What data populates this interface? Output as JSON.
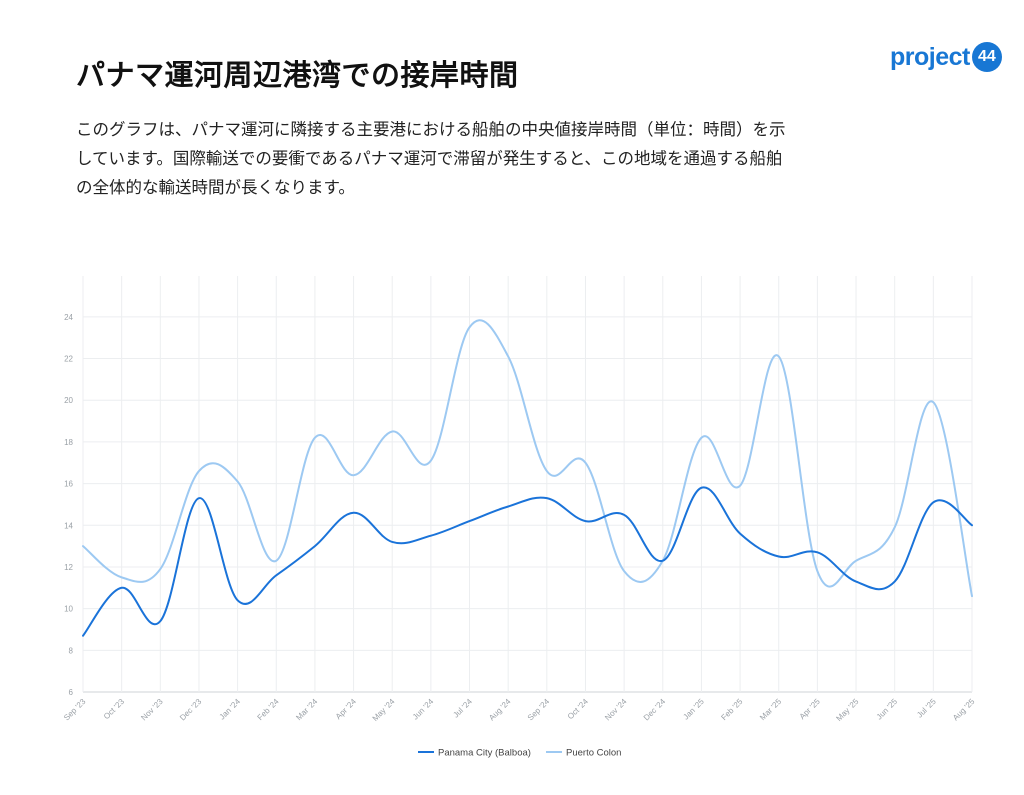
{
  "header": {
    "title": "パナマ運河周辺港湾での接岸時間",
    "description": "このグラフは、パナマ運河に隣接する主要港における船舶の中央値接岸時間（単位：時間）を示しています。国際輸送での要衝であるパナマ運河で滞留が発生すると、この地域を通過する船舶の全体的な輸送時間が長くなります。"
  },
  "logo": {
    "text": "project",
    "badge": "44"
  },
  "chart_data": {
    "type": "line",
    "title": "",
    "xlabel": "",
    "ylabel": "",
    "categories": [
      "Sep '23",
      "Oct '23",
      "Nov '23",
      "Dec '23",
      "Jan '24",
      "Feb '24",
      "Mar '24",
      "Apr '24",
      "May '24",
      "Jun '24",
      "Jul '24",
      "Aug '24",
      "Sep '24",
      "Oct '24",
      "Nov '24",
      "Dec '24",
      "Jan '25",
      "Feb '25",
      "Mar '25",
      "Apr '25",
      "May '25",
      "Jun '25",
      "Jul '25",
      "Aug '25"
    ],
    "ylim": [
      6,
      25
    ],
    "yticks": [
      6,
      8,
      10,
      12,
      14,
      16,
      18,
      20,
      22,
      24
    ],
    "grid": true,
    "legend_position": "bottom",
    "series": [
      {
        "name": "Panama City (Balboa)",
        "color": "#1a73d9",
        "values": [
          8.7,
          11.0,
          9.4,
          15.3,
          10.4,
          11.6,
          13.0,
          14.6,
          13.2,
          13.5,
          14.2,
          14.9,
          15.3,
          14.2,
          14.5,
          12.3,
          15.8,
          13.6,
          12.5,
          12.7,
          11.3,
          11.3,
          15.1,
          14.0
        ]
      },
      {
        "name": "Puerto Colon",
        "color": "#9dc9f2",
        "values": [
          13.0,
          11.5,
          11.9,
          16.6,
          16.1,
          12.3,
          18.2,
          16.4,
          18.5,
          17.1,
          23.5,
          22.1,
          16.6,
          17.0,
          11.8,
          12.3,
          18.2,
          15.9,
          22.1,
          11.8,
          12.3,
          13.9,
          19.9,
          10.6
        ]
      }
    ]
  }
}
